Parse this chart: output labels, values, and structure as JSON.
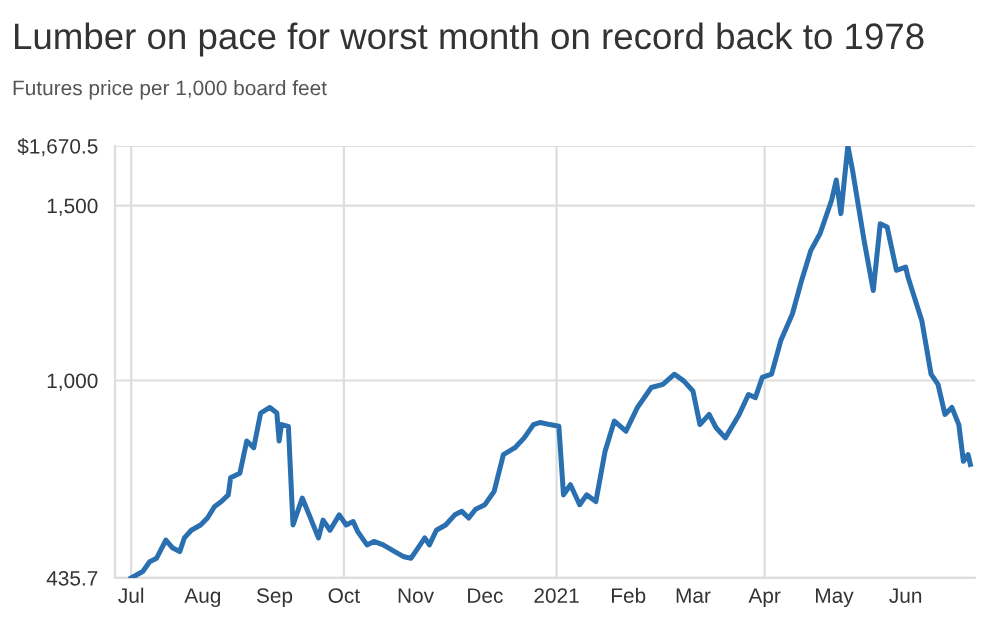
{
  "chart_data": {
    "type": "line",
    "title": "Lumber on pace for worst month on record back to 1978",
    "subtitle": "Futures price per 1,000 board feet",
    "x": [
      "2020-07-01",
      "2020-07-06",
      "2020-07-09",
      "2020-07-12",
      "2020-07-16",
      "2020-07-19",
      "2020-07-22",
      "2020-07-24",
      "2020-07-27",
      "2020-07-31",
      "2020-08-03",
      "2020-08-06",
      "2020-08-09",
      "2020-08-12",
      "2020-08-13",
      "2020-08-17",
      "2020-08-20",
      "2020-08-23",
      "2020-08-26",
      "2020-08-30",
      "2020-09-02",
      "2020-09-03",
      "2020-09-04",
      "2020-09-07",
      "2020-09-09",
      "2020-09-13",
      "2020-09-16",
      "2020-09-20",
      "2020-09-22",
      "2020-09-25",
      "2020-09-29",
      "2020-10-02",
      "2020-10-05",
      "2020-10-07",
      "2020-10-11",
      "2020-10-14",
      "2020-10-18",
      "2020-10-23",
      "2020-10-27",
      "2020-10-30",
      "2020-11-01",
      "2020-11-05",
      "2020-11-07",
      "2020-11-10",
      "2020-11-14",
      "2020-11-18",
      "2020-11-21",
      "2020-11-24",
      "2020-11-27",
      "2020-12-01",
      "2020-12-05",
      "2020-12-09",
      "2020-12-14",
      "2020-12-18",
      "2020-12-22",
      "2020-12-25",
      "2020-12-29",
      "2021-01-02",
      "2021-01-04",
      "2021-01-07",
      "2021-01-11",
      "2021-01-14",
      "2021-01-18",
      "2021-01-22",
      "2021-01-26",
      "2021-01-31",
      "2021-02-05",
      "2021-02-11",
      "2021-02-16",
      "2021-02-21",
      "2021-02-25",
      "2021-03-01",
      "2021-03-04",
      "2021-03-08",
      "2021-03-11",
      "2021-03-15",
      "2021-03-21",
      "2021-03-25",
      "2021-03-28",
      "2021-03-31",
      "2021-04-04",
      "2021-04-08",
      "2021-04-13",
      "2021-04-17",
      "2021-04-21",
      "2021-04-25",
      "2021-04-30",
      "2021-05-02",
      "2021-05-04",
      "2021-05-07",
      "2021-05-09",
      "2021-05-14",
      "2021-05-18",
      "2021-05-21",
      "2021-05-24",
      "2021-05-28",
      "2021-06-01",
      "2021-06-02",
      "2021-06-08",
      "2021-06-12",
      "2021-06-15",
      "2021-06-18",
      "2021-06-21",
      "2021-06-24",
      "2021-06-26",
      "2021-06-28",
      "2021-06-29"
    ],
    "series": [
      {
        "color": "#2a6fb0",
        "values": [
          435.7,
          454,
          482,
          492,
          544,
          521,
          511,
          550,
          572,
          587,
          607,
          639,
          654,
          673,
          722,
          735,
          827,
          808,
          907,
          923,
          907,
          827,
          874,
          869,
          587,
          664,
          616,
          550,
          601,
          572,
          616,
          587,
          597,
          568,
          530,
          540,
          530,
          511,
          496,
          492,
          511,
          550,
          530,
          572,
          587,
          616,
          626,
          607,
          632,
          645,
          683,
          788,
          808,
          836,
          874,
          880,
          874,
          869,
          673,
          702,
          645,
          673,
          654,
          798,
          884,
          855,
          923,
          980,
          989,
          1018,
          999,
          970,
          874,
          903,
          865,
          836,
          903,
          960,
          951,
          1009,
          1018,
          1114,
          1190,
          1286,
          1372,
          1420,
          1516,
          1573,
          1477,
          1670.5,
          1602,
          1401,
          1257,
          1448,
          1439,
          1315,
          1324,
          1296,
          1171,
          1018,
          989,
          903,
          923,
          874,
          769,
          788,
          760
        ]
      }
    ],
    "xlim": [
      "2020-06-24",
      "2021-07-01"
    ],
    "xticks": [
      {
        "value": "2020-07-01",
        "label": "Jul"
      },
      {
        "value": "2020-08-01",
        "label": "Aug"
      },
      {
        "value": "2020-09-01",
        "label": "Sep"
      },
      {
        "value": "2020-10-01",
        "label": "Oct"
      },
      {
        "value": "2020-11-01",
        "label": "Nov"
      },
      {
        "value": "2020-12-01",
        "label": "Dec"
      },
      {
        "value": "2021-01-01",
        "label": "2021"
      },
      {
        "value": "2021-02-01",
        "label": "Feb"
      },
      {
        "value": "2021-03-01",
        "label": "Mar"
      },
      {
        "value": "2021-04-01",
        "label": "Apr"
      },
      {
        "value": "2021-05-01",
        "label": "May"
      },
      {
        "value": "2021-06-01",
        "label": "Jun"
      }
    ],
    "ylim": [
      435.7,
      1670.5
    ],
    "yticks": [
      435.7,
      {
        "value": 1000,
        "label": "1,000"
      },
      {
        "value": 1500,
        "label": "1,500"
      },
      {
        "value": 1670.5,
        "label": "$1,670.5"
      }
    ],
    "grid": "y",
    "ref_lines": [
      {
        "axis": "x",
        "value": "2020-07-01",
        "color": "#dddddd"
      },
      {
        "axis": "x",
        "value": "2020-10-01",
        "color": "#dddddd"
      },
      {
        "axis": "x",
        "value": "2021-01-01",
        "color": "#dddddd"
      },
      {
        "axis": "x",
        "value": "2021-04-01",
        "color": "#dddddd"
      }
    ],
    "line_style": "solid",
    "marker": "none"
  }
}
